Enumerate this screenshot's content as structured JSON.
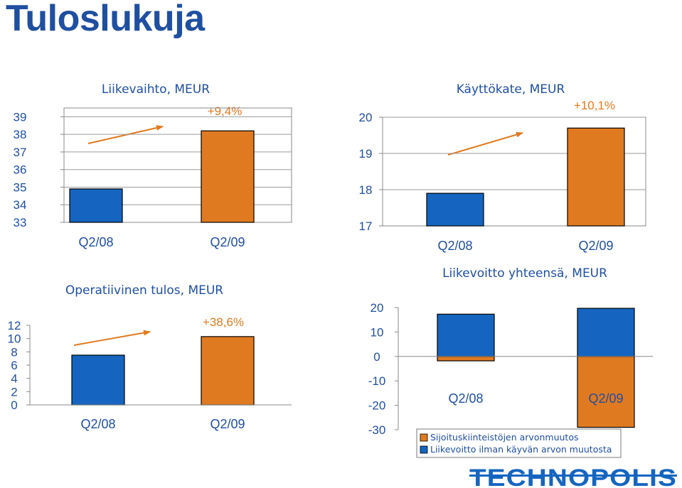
{
  "page_title": "Tuloslukuja",
  "logo_text": "TECHNOPOLIS",
  "colors": {
    "q208": "#1565c0",
    "q209": "#e07a20",
    "text": "#1f4fa0",
    "arrow": "#e07a20"
  },
  "chart_data": [
    {
      "id": "revenue",
      "type": "bar",
      "title": "Liikevaihto, MEUR",
      "categories": [
        "Q2/08",
        "Q2/09"
      ],
      "values": [
        34.9,
        38.2
      ],
      "ylim": [
        33,
        39.5
      ],
      "yticks": [
        33,
        34,
        35,
        36,
        37,
        38,
        39
      ],
      "grid": true,
      "annotation": "+9,4%"
    },
    {
      "id": "ebitda",
      "type": "bar",
      "title": "Käyttökate, MEUR",
      "categories": [
        "Q2/08",
        "Q2/09"
      ],
      "values": [
        17.9,
        19.7
      ],
      "ylim": [
        17,
        20
      ],
      "yticks": [
        17,
        18,
        19,
        20
      ],
      "grid": true,
      "annotation": "+10,1%"
    },
    {
      "id": "operating",
      "type": "bar",
      "title": "Operatiivinen tulos, MEUR",
      "categories": [
        "Q2/08",
        "Q2/09"
      ],
      "values": [
        7.5,
        10.3
      ],
      "ylim": [
        0,
        12
      ],
      "yticks": [
        0,
        2,
        4,
        6,
        8,
        10,
        12
      ],
      "grid": false,
      "annotation": "+38,6%"
    },
    {
      "id": "profit",
      "type": "bar",
      "stacked": true,
      "title": "Liikevoitto yhteensä, MEUR",
      "categories": [
        "Q2/08",
        "Q2/09"
      ],
      "ylim": [
        -30,
        20
      ],
      "yticks": [
        20,
        10,
        0,
        -10,
        -20,
        -30
      ],
      "grid": false,
      "series": [
        {
          "name": "Sijoituskiinteistöjen arvonmuutos",
          "color": "#e07a20",
          "values": [
            -1.8,
            -29
          ]
        },
        {
          "name": "Liikevoitto ilman käyvän arvon muutosta",
          "color": "#1565c0",
          "values": [
            17.3,
            19.7
          ]
        }
      ]
    }
  ]
}
